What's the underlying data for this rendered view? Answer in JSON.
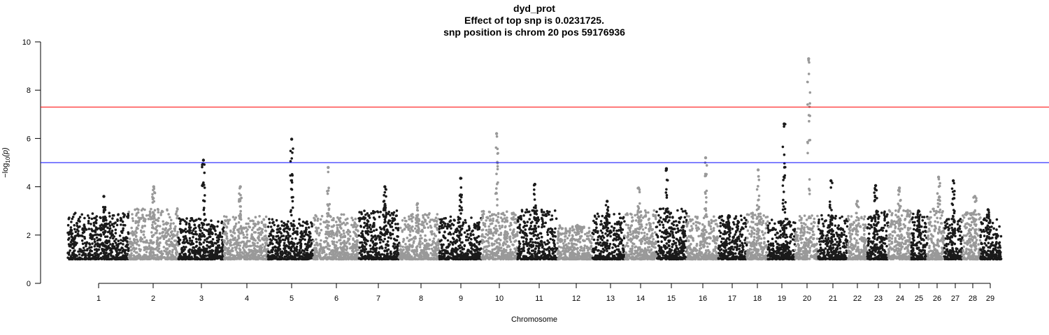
{
  "chart_data": {
    "type": "scatter",
    "subtype": "manhattan",
    "title": "dyd_prot",
    "subtitle_lines": [
      "Effect of top snp is 0.0231725.",
      "snp position is chrom 20 pos 59176936"
    ],
    "xlabel": "Chromosome",
    "ylabel_main": "−log",
    "ylabel_sub": "10",
    "ylabel_tail": "(p)",
    "ylim": [
      0,
      10
    ],
    "yticks": [
      "0",
      "2",
      "4",
      "6",
      "8",
      "10"
    ],
    "categories": [
      "1",
      "2",
      "3",
      "4",
      "5",
      "6",
      "7",
      "8",
      "9",
      "10",
      "11",
      "12",
      "13",
      "14",
      "15",
      "16",
      "17",
      "18",
      "19",
      "20",
      "21",
      "22",
      "23",
      "24",
      "25",
      "26",
      "27",
      "28",
      "29"
    ],
    "colors": {
      "odd": "#1a1a1a",
      "even": "#999999",
      "genome_wide_line": "#ff0000",
      "suggestive_line": "#0000ff"
    },
    "thresholds": {
      "genome_wide": 7.3,
      "suggestive": 5.0
    },
    "baseline_min": 1.0,
    "peak_max_per_chromosome": [
      3.6,
      4.0,
      5.1,
      4.0,
      5.97,
      4.8,
      4.0,
      3.3,
      4.35,
      6.2,
      4.1,
      2.4,
      3.4,
      3.95,
      4.75,
      5.2,
      2.8,
      4.7,
      6.6,
      9.3,
      4.25,
      3.4,
      4.05,
      3.95,
      3.0,
      4.4,
      4.25,
      3.6,
      3.05
    ],
    "notable_points": [
      {
        "chrom": "3",
        "value": 5.1
      },
      {
        "chrom": "5",
        "value": 5.97
      },
      {
        "chrom": "10",
        "value": 6.2
      },
      {
        "chrom": "16",
        "value": 5.2
      },
      {
        "chrom": "19",
        "value": 6.6
      },
      {
        "chrom": "20",
        "value": 9.3
      }
    ]
  }
}
